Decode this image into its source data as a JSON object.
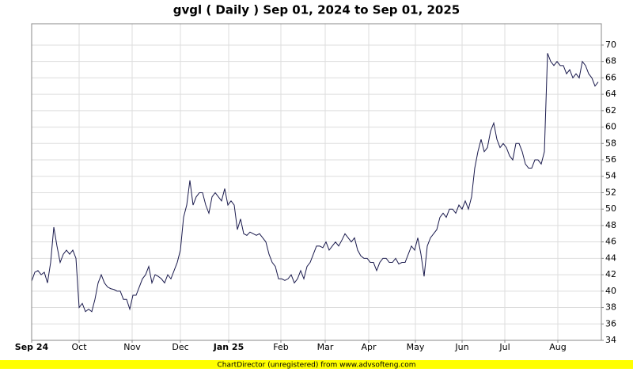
{
  "chart_data": {
    "type": "line",
    "title": "gvgl ( Daily ) Sep 01, 2024 to Sep 01, 2025",
    "footer": "ChartDirector (unregistered) from www.advsofteng.com",
    "series": [
      {
        "name": "gvgl",
        "color": "#1a1a4d",
        "values": [
          41.2,
          42.3,
          42.5,
          42.0,
          42.3,
          41.0,
          43.5,
          47.8,
          45.5,
          43.5,
          44.5,
          45.0,
          44.5,
          45.0,
          44.0,
          38.0,
          38.5,
          37.5,
          37.8,
          37.5,
          39.0,
          41.0,
          42.0,
          41.0,
          40.5,
          40.3,
          40.2,
          40.0,
          40.0,
          39.0,
          39.0,
          37.8,
          39.5,
          39.5,
          40.5,
          41.5,
          42.0,
          43.0,
          41.0,
          42.0,
          41.8,
          41.5,
          41.0,
          42.0,
          41.5,
          42.5,
          43.5,
          45.0,
          49.0,
          50.5,
          53.5,
          50.5,
          51.5,
          52.0,
          52.0,
          50.5,
          49.5,
          51.5,
          52.0,
          51.5,
          51.0,
          52.5,
          50.5,
          51.0,
          50.5,
          47.5,
          48.8,
          47.0,
          46.8,
          47.2,
          47.0,
          46.8,
          47.0,
          46.5,
          46.0,
          44.5,
          43.5,
          43.0,
          41.5,
          41.5,
          41.3,
          41.5,
          42.0,
          41.0,
          41.5,
          42.5,
          41.5,
          43.0,
          43.5,
          44.5,
          45.5,
          45.5,
          45.3,
          46.0,
          45.0,
          45.5,
          46.0,
          45.5,
          46.2,
          47.0,
          46.5,
          46.0,
          46.5,
          45.0,
          44.3,
          44.0,
          44.0,
          43.5,
          43.5,
          42.5,
          43.5,
          44.0,
          44.0,
          43.5,
          43.5,
          44.0,
          43.3,
          43.5,
          43.5,
          44.5,
          45.5,
          45.0,
          46.5,
          44.5,
          41.8,
          45.5,
          46.5,
          47.0,
          47.5,
          49.0,
          49.5,
          49.0,
          50.0,
          50.0,
          49.5,
          50.5,
          50.0,
          51.0,
          50.0,
          51.5,
          55.0,
          57.0,
          58.5,
          57.0,
          57.5,
          59.5,
          60.5,
          58.5,
          57.5,
          58.0,
          57.5,
          56.5,
          56.0,
          58.0,
          58.0,
          57.0,
          55.5,
          55.0,
          55.0,
          56.0,
          56.0,
          55.5,
          57.0,
          69.0,
          68.0,
          67.5,
          68.0,
          67.5,
          67.5,
          66.5,
          67.0,
          66.0,
          66.5,
          66.0,
          68.0,
          67.5,
          66.5,
          66.0,
          65.0,
          65.5
        ]
      }
    ],
    "xlim": [
      0,
      180
    ],
    "xticks": [
      {
        "value": 0,
        "label": "Sep 24",
        "bold": true
      },
      {
        "value": 15,
        "label": "Oct"
      },
      {
        "value": 31.75,
        "label": "Nov"
      },
      {
        "value": 47,
        "label": "Dec"
      },
      {
        "value": 62.25,
        "label": "Jan 25",
        "bold": true
      },
      {
        "value": 78.75,
        "label": "Feb"
      },
      {
        "value": 92.75,
        "label": "Mar"
      },
      {
        "value": 106.5,
        "label": "Apr"
      },
      {
        "value": 121.25,
        "label": "May"
      },
      {
        "value": 136,
        "label": "Jun"
      },
      {
        "value": 149.5,
        "label": "Jul"
      },
      {
        "value": 166.25,
        "label": "Aug"
      }
    ],
    "ylim": [
      34,
      72.6
    ],
    "yticks": [
      34,
      36,
      38,
      40,
      42,
      44,
      46,
      48,
      50,
      52,
      54,
      56,
      58,
      60,
      62,
      64,
      66,
      68,
      70
    ],
    "grid": true
  }
}
